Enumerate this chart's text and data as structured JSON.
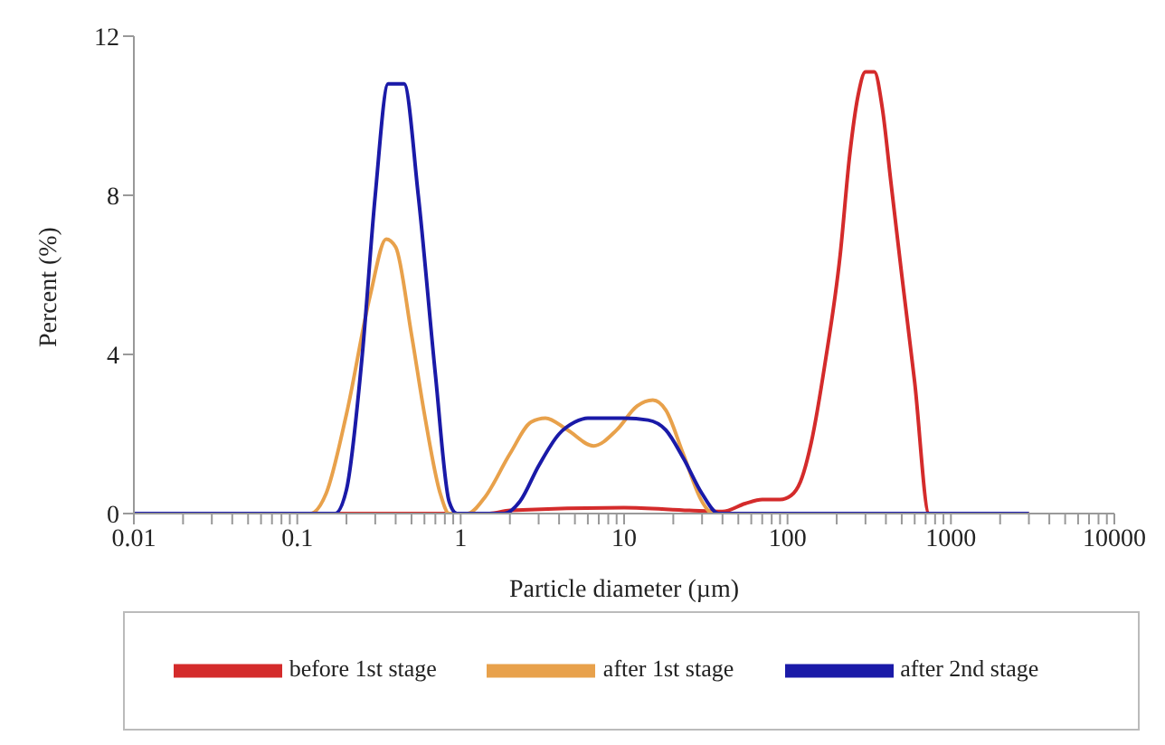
{
  "chart_data": {
    "type": "line",
    "xlabel": "Particle diameter (µm)",
    "ylabel": "Percent (%)",
    "log": "x",
    "grid": false,
    "legend": "bottom",
    "marker": "none",
    "line_style": "solid",
    "xlim": [
      0.01,
      10000
    ],
    "ylim": [
      0,
      12
    ],
    "yticks": [
      0,
      4,
      8,
      12
    ],
    "xticks": [
      0.01,
      {
        "value": 0.02,
        "label": null
      },
      {
        "value": 0.03,
        "label": null
      },
      {
        "value": 0.04,
        "label": null
      },
      {
        "value": 0.05,
        "label": null
      },
      {
        "value": 0.06,
        "label": null
      },
      {
        "value": 0.07,
        "label": null
      },
      {
        "value": 0.08,
        "label": null
      },
      {
        "value": 0.09,
        "label": null
      },
      0.1,
      {
        "value": 0.2,
        "label": null
      },
      {
        "value": 0.3,
        "label": null
      },
      {
        "value": 0.4,
        "label": null
      },
      {
        "value": 0.5,
        "label": null
      },
      {
        "value": 0.6,
        "label": null
      },
      {
        "value": 0.7,
        "label": null
      },
      {
        "value": 0.8,
        "label": null
      },
      {
        "value": 0.9,
        "label": null
      },
      1,
      {
        "value": 2,
        "label": null
      },
      {
        "value": 3,
        "label": null
      },
      {
        "value": 4,
        "label": null
      },
      {
        "value": 5,
        "label": null
      },
      {
        "value": 6,
        "label": null
      },
      {
        "value": 7,
        "label": null
      },
      {
        "value": 8,
        "label": null
      },
      {
        "value": 9,
        "label": null
      },
      10,
      {
        "value": 20,
        "label": null
      },
      {
        "value": 30,
        "label": null
      },
      {
        "value": 40,
        "label": null
      },
      {
        "value": 50,
        "label": null
      },
      {
        "value": 60,
        "label": null
      },
      {
        "value": 70,
        "label": null
      },
      {
        "value": 80,
        "label": null
      },
      {
        "value": 90,
        "label": null
      },
      100,
      {
        "value": 200,
        "label": null
      },
      {
        "value": 300,
        "label": null
      },
      {
        "value": 400,
        "label": null
      },
      {
        "value": 500,
        "label": null
      },
      {
        "value": 600,
        "label": null
      },
      {
        "value": 700,
        "label": null
      },
      {
        "value": 800,
        "label": null
      },
      {
        "value": 900,
        "label": null
      },
      1000,
      {
        "value": 2000,
        "label": null
      },
      {
        "value": 3000,
        "label": null
      },
      {
        "value": 4000,
        "label": null
      },
      {
        "value": 5000,
        "label": null
      },
      {
        "value": 6000,
        "label": null
      },
      {
        "value": 7000,
        "label": null
      },
      {
        "value": 8000,
        "label": null
      },
      {
        "value": 9000,
        "label": null
      },
      10000
    ],
    "series": [
      {
        "name": "before 1st stage",
        "color": "#d42b2b",
        "x": [
          0.01,
          1.5,
          2,
          10,
          25,
          40,
          55,
          70,
          90,
          105,
          120,
          140,
          170,
          210,
          240,
          270,
          300,
          340,
          380,
          430,
          500,
          600,
          735,
          3000
        ],
        "values": [
          0,
          0,
          0.08,
          0.15,
          0.08,
          0.05,
          0.25,
          0.35,
          0.35,
          0.45,
          0.8,
          1.8,
          3.8,
          6.5,
          9,
          10.5,
          11.1,
          11.1,
          10.2,
          8.3,
          6,
          3.3,
          0,
          0
        ]
      },
      {
        "name": "after 1st stage",
        "color": "#e8a14b",
        "x": [
          0.01,
          0.12,
          0.15,
          0.2,
          0.28,
          0.35,
          0.4,
          0.5,
          0.6,
          0.75,
          0.85,
          1.1,
          1.4,
          2,
          2.7,
          3.3,
          4.5,
          6.5,
          9,
          12,
          15,
          18,
          23,
          30,
          35,
          3000
        ],
        "values": [
          0,
          0,
          0.5,
          2.5,
          5.5,
          6.9,
          6.7,
          4.5,
          2.5,
          0.5,
          0,
          0,
          0.4,
          1.5,
          2.3,
          2.4,
          2.1,
          1.7,
          2.1,
          2.7,
          2.85,
          2.6,
          1.5,
          0.3,
          0,
          0
        ]
      },
      {
        "name": "after 2nd stage",
        "color": "#1a1aa8",
        "x": [
          0.01,
          0.17,
          0.2,
          0.25,
          0.3,
          0.36,
          0.45,
          0.55,
          0.7,
          0.85,
          0.95,
          1.85,
          2.3,
          3,
          4,
          5,
          6,
          10,
          14,
          18,
          23,
          30,
          38,
          3000
        ],
        "values": [
          0,
          0,
          0.6,
          4,
          8,
          10.8,
          10.8,
          8,
          3.5,
          0.3,
          0,
          0,
          0.3,
          1.2,
          2,
          2.3,
          2.4,
          2.4,
          2.35,
          2.1,
          1.4,
          0.5,
          0,
          0
        ]
      }
    ]
  }
}
